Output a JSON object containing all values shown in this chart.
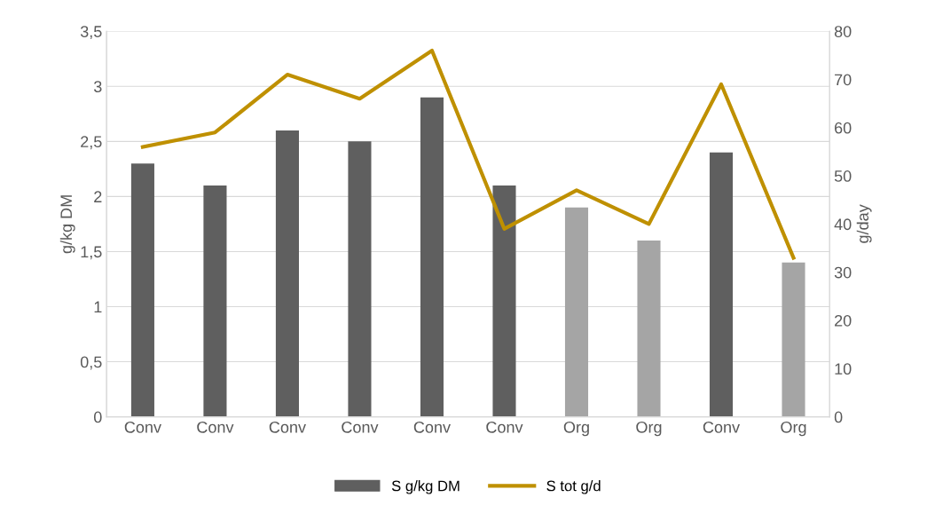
{
  "chart_data": {
    "type": "bar",
    "categories": [
      "Conv",
      "Conv",
      "Conv",
      "Conv",
      "Conv",
      "Conv",
      "Org",
      "Org",
      "Conv",
      "Org"
    ],
    "series": [
      {
        "name": "S g/kg DM",
        "colors": [
          "#5f5f5f",
          "#5f5f5f",
          "#5f5f5f",
          "#5f5f5f",
          "#5f5f5f",
          "#5f5f5f",
          "#a5a5a5",
          "#a5a5a5",
          "#5f5f5f",
          "#a5a5a5"
        ],
        "color": "#5f5f5f",
        "values": [
          2.3,
          2.1,
          2.6,
          2.5,
          2.9,
          2.1,
          1.9,
          1.6,
          2.4,
          1.4
        ]
      },
      {
        "name": "S tot g/d",
        "type": "line",
        "axis": "y2",
        "color": "#bf9000",
        "values": [
          56,
          59,
          71,
          66,
          76,
          39,
          47,
          40,
          69,
          33
        ]
      }
    ],
    "ylabel": "g/kg DM",
    "y2label": "g/day",
    "ylim": [
      0,
      3.5
    ],
    "yticks": [
      0,
      {
        "value": 0.5,
        "label": "0,5"
      },
      1,
      {
        "value": 1.5,
        "label": "1,5"
      },
      2,
      {
        "value": 2.5,
        "label": "2,5"
      },
      3,
      {
        "value": 3.5,
        "label": "3,5"
      }
    ],
    "y2lim": [
      0,
      80
    ],
    "y2ticks": [
      0,
      10,
      20,
      30,
      40,
      50,
      60,
      70,
      80
    ],
    "grid": "y",
    "legend": "bottom"
  }
}
